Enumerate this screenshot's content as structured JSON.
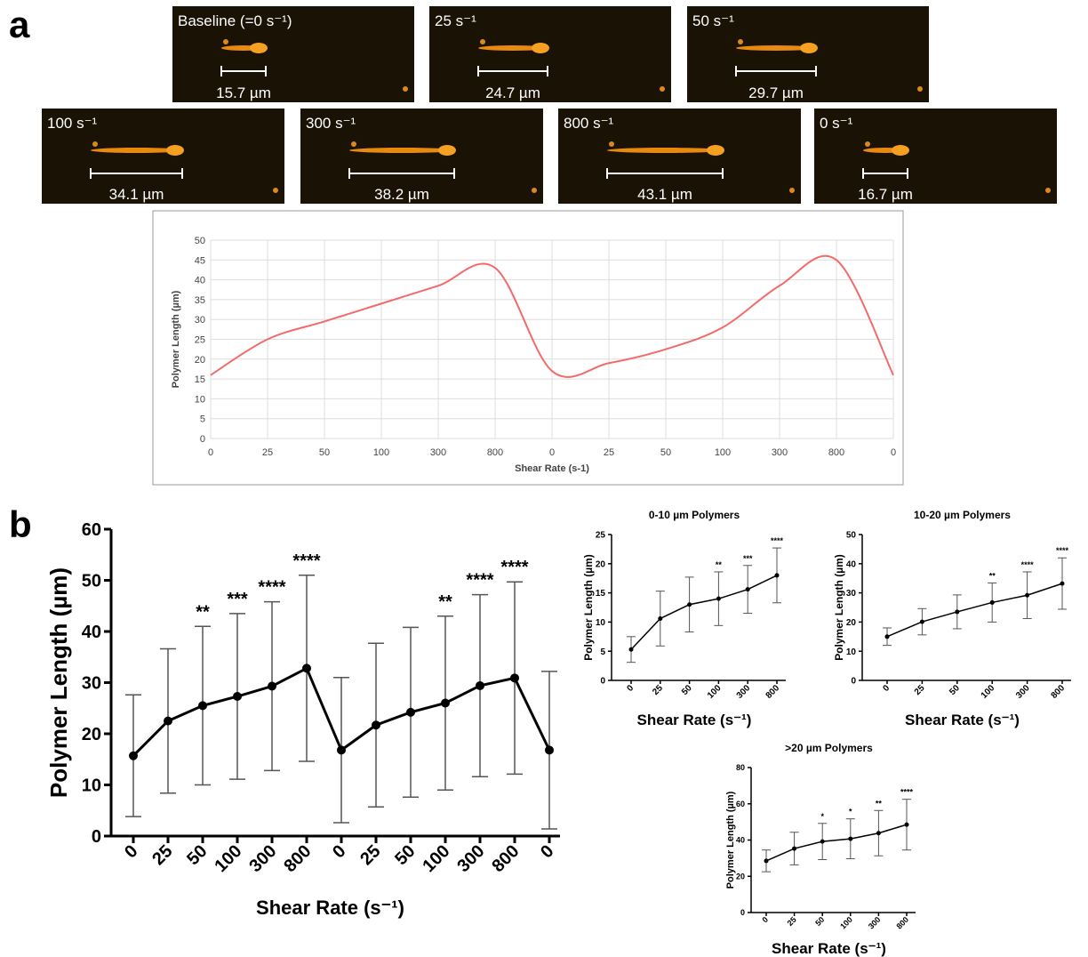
{
  "panel_labels": [
    "a",
    "b"
  ],
  "images": [
    {
      "label": "Baseline (=0 s⁻¹)",
      "measure": "15.7 µm"
    },
    {
      "label": "25 s⁻¹",
      "measure": "24.7 µm"
    },
    {
      "label": "50 s⁻¹",
      "measure": "29.7 µm"
    },
    {
      "label": "100 s⁻¹",
      "measure": "34.1 µm"
    },
    {
      "label": "300 s⁻¹",
      "measure": "38.2 µm"
    },
    {
      "label": "800 s⁻¹",
      "measure": "43.1 µm"
    },
    {
      "label": "0 s⁻¹",
      "measure": "16.7 µm"
    }
  ],
  "chart_data": [
    {
      "type": "line",
      "x_label": "Shear Rate (s-1)",
      "y_label": "Polymer Length (µm)",
      "color": "#f26b6b",
      "grid": true,
      "categories": [
        "0",
        "25",
        "50",
        "100",
        "300",
        "800",
        "0",
        "25",
        "50",
        "100",
        "300",
        "800",
        "0"
      ],
      "values": [
        16,
        25,
        29.5,
        34,
        38.5,
        43,
        17,
        19,
        22.5,
        28,
        38.5,
        45,
        16
      ],
      "ylim": [
        0,
        50
      ],
      "yticks": [
        0,
        5,
        10,
        15,
        20,
        25,
        30,
        35,
        40,
        45,
        50
      ]
    },
    {
      "type": "errorbar",
      "x_label": "Shear  Rate (s⁻¹)",
      "y_label": "Polymer Length (µm)",
      "color": "#000000",
      "categories": [
        "0",
        "25",
        "50",
        "100",
        "300",
        "800",
        "0",
        "25",
        "50",
        "100",
        "300",
        "800",
        "0"
      ],
      "values": [
        15.7,
        22.5,
        25.5,
        27.3,
        29.3,
        32.8,
        16.8,
        21.7,
        24.2,
        26,
        29.4,
        30.9,
        16.8
      ],
      "errors": [
        11.9,
        14.1,
        15.5,
        16.2,
        16.5,
        18.2,
        14.2,
        16,
        16.6,
        17,
        17.8,
        18.8,
        15.4
      ],
      "significance": [
        null,
        null,
        "**",
        "***",
        "****",
        "****",
        null,
        null,
        null,
        "**",
        "****",
        "****",
        null
      ],
      "ylim": [
        0,
        60
      ],
      "yticks": [
        0,
        10,
        20,
        30,
        40,
        50,
        60
      ]
    },
    {
      "type": "errorbar",
      "title": "0-10 µm Polymers",
      "x_label": "Shear  Rate (s⁻¹)",
      "y_label": "Polymer Length (µm)",
      "color": "#000000",
      "categories": [
        "0",
        "25",
        "50",
        "100",
        "300",
        "800"
      ],
      "values": [
        5.3,
        10.6,
        13,
        14,
        15.6,
        18
      ],
      "errors": [
        2.2,
        4.7,
        4.7,
        4.6,
        4.1,
        4.7
      ],
      "significance": [
        null,
        null,
        null,
        "**",
        "***",
        "****"
      ],
      "ylim": [
        0,
        25
      ],
      "yticks": [
        0,
        5,
        10,
        15,
        20,
        25
      ]
    },
    {
      "type": "errorbar",
      "title": "10-20 µm Polymers",
      "x_label": "Shear  Rate (s⁻¹)",
      "y_label": "Polymer Length (µm)",
      "color": "#000000",
      "categories": [
        "0",
        "25",
        "50",
        "100",
        "300",
        "800"
      ],
      "values": [
        15,
        20.1,
        23.5,
        26.7,
        29.2,
        33.2
      ],
      "errors": [
        3,
        4.5,
        5.8,
        6.7,
        8,
        8.8
      ],
      "significance": [
        null,
        null,
        null,
        "**",
        "****",
        "****"
      ],
      "ylim": [
        0,
        50
      ],
      "yticks": [
        0,
        10,
        20,
        30,
        40,
        50
      ]
    },
    {
      "type": "errorbar",
      "title": ">20 µm Polymers",
      "x_label": "Shear  Rate (s⁻¹)",
      "y_label": "Polymer Length (µm)",
      "color": "#000000",
      "categories": [
        "0",
        "25",
        "50",
        "100",
        "300",
        "800"
      ],
      "values": [
        28.5,
        35.3,
        39.2,
        40.7,
        43.8,
        48.5
      ],
      "errors": [
        6,
        9,
        10,
        11,
        12.5,
        14
      ],
      "significance": [
        null,
        null,
        "*",
        "*",
        "**",
        "****"
      ],
      "ylim": [
        0,
        80
      ],
      "yticks": [
        0,
        20,
        40,
        60,
        80
      ]
    }
  ]
}
